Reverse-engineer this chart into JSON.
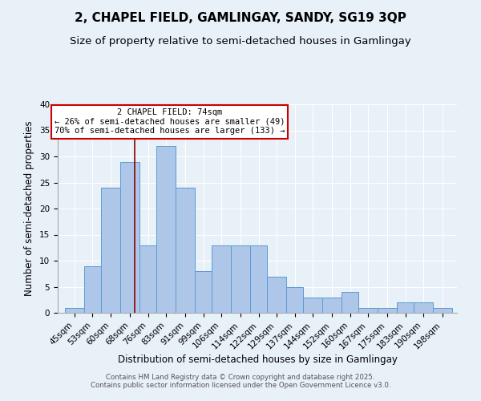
{
  "title": "2, CHAPEL FIELD, GAMLINGAY, SANDY, SG19 3QP",
  "subtitle": "Size of property relative to semi-detached houses in Gamlingay",
  "xlabel": "Distribution of semi-detached houses by size in Gamlingay",
  "ylabel": "Number of semi-detached properties",
  "footer_line1": "Contains HM Land Registry data © Crown copyright and database right 2025.",
  "footer_line2": "Contains public sector information licensed under the Open Government Licence v3.0.",
  "annotation_title": "2 CHAPEL FIELD: 74sqm",
  "annotation_line2": "← 26% of semi-detached houses are smaller (49)",
  "annotation_line3": "70% of semi-detached houses are larger (133) →",
  "bar_edges": [
    45,
    53,
    60,
    68,
    76,
    83,
    91,
    99,
    106,
    114,
    122,
    129,
    137,
    144,
    152,
    160,
    167,
    175,
    183,
    190,
    198
  ],
  "bar_heights": [
    1,
    9,
    24,
    29,
    13,
    32,
    24,
    8,
    13,
    13,
    13,
    7,
    5,
    3,
    3,
    4,
    1,
    1,
    2,
    2,
    1
  ],
  "bar_color": "#aec6e8",
  "bar_edge_color": "#5b9bd5",
  "red_line_x": 74,
  "background_color": "#e8f0f8",
  "plot_bg_color": "#e8f0f8",
  "annotation_box_color": "white",
  "annotation_box_edge": "#cc0000",
  "ylim": [
    0,
    40
  ],
  "yticks": [
    0,
    5,
    10,
    15,
    20,
    25,
    30,
    35,
    40
  ],
  "title_fontsize": 11,
  "subtitle_fontsize": 9.5,
  "axis_fontsize": 8.5,
  "tick_fontsize": 7.5,
  "annotation_fontsize": 7.5
}
